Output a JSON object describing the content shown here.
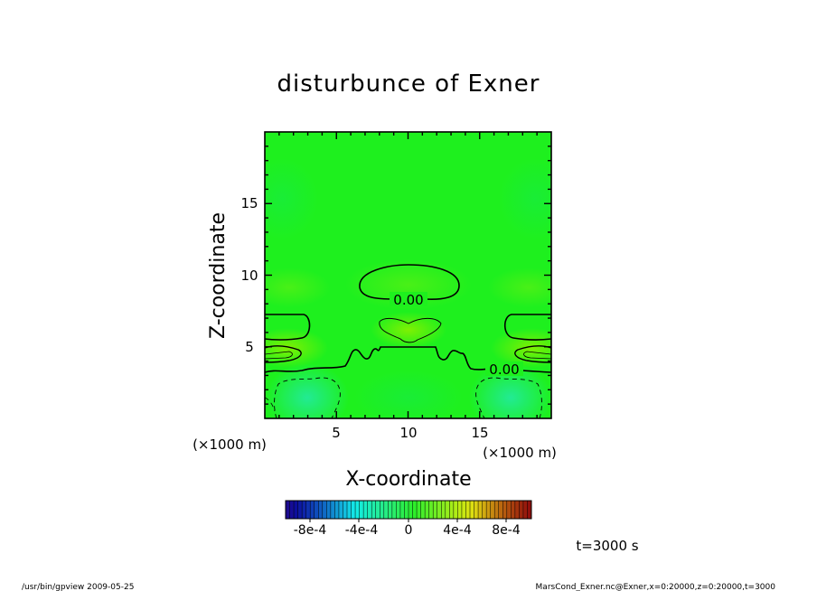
{
  "chart_data": {
    "type": "heatmap",
    "title": "disturbunce of Exner",
    "xlabel": "X-coordinate",
    "ylabel": "Z-coordinate",
    "x_unit": "(×1000 m)",
    "y_unit": "(×1000 m)",
    "xlim": [
      0,
      20
    ],
    "ylim": [
      0,
      20
    ],
    "x_ticks": [
      "5",
      "10",
      "15"
    ],
    "y_ticks": [
      "5",
      "10",
      "15"
    ],
    "contour_labels": [
      "0.00",
      "0.00"
    ],
    "colorbar": {
      "range": [
        -0.001,
        0.001
      ],
      "tick_labels": [
        "-8e-4",
        "-4e-4",
        "0",
        "4e-4",
        "8e-4"
      ]
    },
    "time_label": "t=3000 s"
  },
  "footer": {
    "left": "/usr/bin/gpview   2009-05-25",
    "right": "MarsCond_Exner.nc@Exner,x=0:20000,z=0:20000,t=3000"
  },
  "colors": {
    "field_base": "#1ef01e",
    "positive_tint": "#7cf000",
    "negative_tint": "#1de87a"
  }
}
